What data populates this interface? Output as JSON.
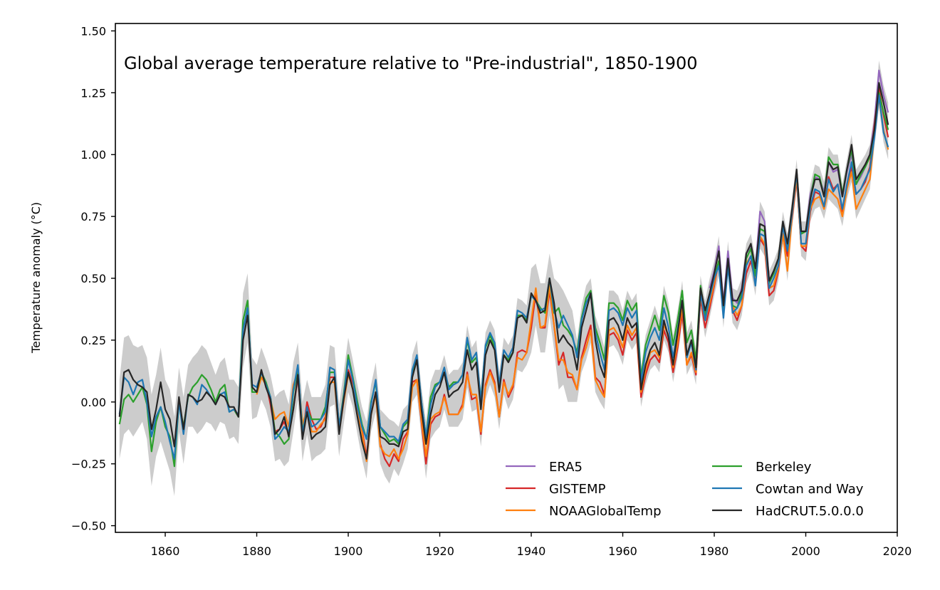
{
  "chart_data": {
    "type": "line",
    "title": "Global average temperature relative to \"Pre-industrial\", 1850-1900",
    "xlabel": "",
    "ylabel": "Temperature anomaly (°C)",
    "xlim": [
      1849.1,
      2020
    ],
    "ylim": [
      -0.527,
      1.53
    ],
    "x_ticks": [
      "1860",
      "1880",
      "1900",
      "1920",
      "1940",
      "1960",
      "1980",
      "2000",
      "2020"
    ],
    "y_ticks": [
      "1.50",
      "1.25",
      "1.00",
      "0.75",
      "0.50",
      "0.25",
      "0.00",
      "−0.25",
      "−0.50"
    ],
    "grid": false,
    "legend_placement": "lower-right",
    "shaded_band": {
      "color": "#cccccc",
      "decades": [
        1850,
        1860,
        1870,
        1880,
        1890,
        1900,
        1910,
        1920,
        1930,
        1940,
        1950,
        1960,
        1970,
        1980,
        1990,
        2000,
        2010
      ],
      "halfwidth": [
        0.14,
        0.12,
        0.11,
        0.09,
        0.09,
        0.07,
        0.06,
        0.05,
        0.05,
        0.1,
        0.05,
        0.04,
        0.04,
        0.04,
        0.04,
        0.04,
        0.04
      ]
    },
    "series": [
      {
        "name": "ERA5",
        "color": "#9467bd",
        "start_year": 1979,
        "values": [
          0.46,
          0.53,
          0.63,
          0.4,
          0.61,
          0.42,
          0.4,
          0.46,
          0.6,
          0.63,
          0.54,
          0.77,
          0.73,
          0.49,
          0.52,
          0.57,
          0.72,
          0.63,
          0.76,
          0.93,
          0.68,
          0.69,
          0.84,
          0.91,
          0.9,
          0.85,
          0.97,
          0.93,
          0.94,
          0.83,
          0.93,
          1.0,
          0.88,
          0.91,
          0.95,
          1.0,
          1.13,
          1.34,
          1.24,
          1.17
        ]
      },
      {
        "name": "GISTEMP",
        "color": "#d62728",
        "start_year": 1880,
        "values": [
          0.04,
          0.1,
          0.08,
          -0.01,
          -0.12,
          -0.11,
          -0.08,
          -0.13,
          -0.03,
          0.1,
          -0.13,
          0.0,
          -0.07,
          -0.11,
          -0.1,
          -0.06,
          0.1,
          0.1,
          -0.1,
          0.02,
          0.13,
          0.07,
          -0.03,
          -0.11,
          -0.22,
          -0.05,
          0.04,
          -0.17,
          -0.23,
          -0.26,
          -0.21,
          -0.24,
          -0.15,
          -0.12,
          0.08,
          0.09,
          -0.08,
          -0.25,
          -0.09,
          -0.06,
          -0.05,
          0.03,
          -0.05,
          -0.05,
          -0.05,
          -0.01,
          0.12,
          0.01,
          0.02,
          -0.13,
          0.07,
          0.13,
          0.08,
          -0.06,
          0.09,
          0.02,
          0.06,
          0.2,
          0.21,
          0.2,
          0.3,
          0.44,
          0.3,
          0.3,
          0.45,
          0.31,
          0.15,
          0.2,
          0.1,
          0.1,
          0.05,
          0.18,
          0.25,
          0.31,
          0.1,
          0.08,
          0.03,
          0.27,
          0.28,
          0.25,
          0.19,
          0.29,
          0.25,
          0.28,
          0.02,
          0.11,
          0.17,
          0.19,
          0.16,
          0.29,
          0.24,
          0.12,
          0.22,
          0.36,
          0.15,
          0.19,
          0.11,
          0.42,
          0.3,
          0.38,
          0.47,
          0.57,
          0.38,
          0.57,
          0.37,
          0.33,
          0.39,
          0.52,
          0.57,
          0.49,
          0.66,
          0.63,
          0.43,
          0.45,
          0.53,
          0.68,
          0.59,
          0.74,
          0.9,
          0.63,
          0.61,
          0.77,
          0.85,
          0.84,
          0.79,
          0.91,
          0.86,
          0.88,
          0.77,
          0.87,
          0.95,
          0.84,
          0.86,
          0.89,
          0.95,
          1.12,
          1.27,
          1.16,
          1.07
        ]
      },
      {
        "name": "NOAAGlobalTemp",
        "color": "#ff7f0e",
        "start_year": 1880,
        "values": [
          0.03,
          0.1,
          0.07,
          0.01,
          -0.07,
          -0.05,
          -0.04,
          -0.1,
          0.07,
          0.12,
          -0.09,
          -0.03,
          -0.12,
          -0.12,
          -0.09,
          -0.07,
          0.08,
          0.08,
          -0.12,
          0.0,
          0.11,
          0.06,
          -0.04,
          -0.12,
          -0.24,
          -0.05,
          0.03,
          -0.18,
          -0.21,
          -0.22,
          -0.19,
          -0.23,
          -0.19,
          -0.13,
          0.06,
          0.09,
          -0.07,
          -0.22,
          -0.07,
          -0.05,
          -0.04,
          0.02,
          -0.05,
          -0.05,
          -0.05,
          -0.02,
          0.11,
          0.03,
          0.03,
          -0.12,
          0.06,
          0.12,
          0.07,
          -0.06,
          0.08,
          0.03,
          0.07,
          0.18,
          0.17,
          0.2,
          0.33,
          0.46,
          0.3,
          0.31,
          0.47,
          0.31,
          0.17,
          0.17,
          0.12,
          0.11,
          0.05,
          0.17,
          0.22,
          0.29,
          0.09,
          0.05,
          0.02,
          0.29,
          0.3,
          0.27,
          0.22,
          0.31,
          0.27,
          0.3,
          0.04,
          0.13,
          0.2,
          0.21,
          0.18,
          0.31,
          0.27,
          0.14,
          0.24,
          0.39,
          0.15,
          0.2,
          0.12,
          0.43,
          0.33,
          0.4,
          0.48,
          0.57,
          0.39,
          0.56,
          0.39,
          0.35,
          0.39,
          0.56,
          0.59,
          0.5,
          0.67,
          0.64,
          0.46,
          0.47,
          0.54,
          0.68,
          0.53,
          0.75,
          0.91,
          0.63,
          0.63,
          0.78,
          0.82,
          0.83,
          0.78,
          0.86,
          0.84,
          0.82,
          0.75,
          0.86,
          0.93,
          0.78,
          0.82,
          0.86,
          0.9,
          1.08,
          1.23,
          1.1,
          1.02
        ]
      },
      {
        "name": "Berkeley",
        "color": "#2ca02c",
        "start_year": 1850,
        "values": [
          -0.09,
          0.01,
          0.03,
          0.0,
          0.03,
          0.06,
          -0.01,
          -0.2,
          -0.08,
          -0.02,
          -0.1,
          -0.14,
          -0.26,
          0.0,
          -0.1,
          0.02,
          0.06,
          0.08,
          0.11,
          0.09,
          0.05,
          0.0,
          0.05,
          0.07,
          -0.04,
          -0.03,
          -0.06,
          0.33,
          0.41,
          0.04,
          0.04,
          0.12,
          0.08,
          0.02,
          -0.12,
          -0.14,
          -0.17,
          -0.15,
          0.04,
          0.14,
          -0.12,
          -0.03,
          -0.07,
          -0.07,
          -0.07,
          -0.02,
          0.12,
          0.12,
          -0.1,
          0.03,
          0.19,
          0.1,
          0.0,
          -0.09,
          -0.15,
          0.0,
          0.08,
          -0.1,
          -0.13,
          -0.16,
          -0.15,
          -0.17,
          -0.1,
          -0.08,
          0.12,
          0.18,
          0.0,
          -0.14,
          0.02,
          0.07,
          0.08,
          0.12,
          0.06,
          0.08,
          0.08,
          0.11,
          0.25,
          0.16,
          0.18,
          0.01,
          0.22,
          0.27,
          0.22,
          0.06,
          0.19,
          0.17,
          0.2,
          0.35,
          0.35,
          0.33,
          0.43,
          0.41,
          0.38,
          0.36,
          0.5,
          0.36,
          0.38,
          0.31,
          0.29,
          0.26,
          0.2,
          0.34,
          0.42,
          0.45,
          0.3,
          0.24,
          0.17,
          0.4,
          0.4,
          0.38,
          0.33,
          0.41,
          0.37,
          0.4,
          0.1,
          0.23,
          0.29,
          0.35,
          0.29,
          0.43,
          0.36,
          0.23,
          0.33,
          0.45,
          0.24,
          0.29,
          0.17,
          0.47,
          0.35,
          0.43,
          0.5,
          0.57,
          0.38,
          0.56,
          0.39,
          0.38,
          0.44,
          0.58,
          0.62,
          0.51,
          0.7,
          0.69,
          0.48,
          0.52,
          0.58,
          0.72,
          0.63,
          0.77,
          0.93,
          0.68,
          0.69,
          0.82,
          0.92,
          0.91,
          0.83,
          0.99,
          0.96,
          0.96,
          0.84,
          0.94,
          1.02,
          0.88,
          0.92,
          0.95,
          0.99,
          1.1,
          1.25,
          1.17,
          1.1
        ]
      },
      {
        "name": "Cowtan and Way",
        "color": "#1f77b4",
        "start_year": 1850,
        "values": [
          -0.05,
          0.1,
          0.08,
          0.03,
          0.08,
          0.09,
          0.0,
          -0.14,
          -0.06,
          -0.02,
          -0.08,
          -0.16,
          -0.23,
          0.0,
          -0.13,
          0.03,
          0.02,
          -0.01,
          0.07,
          0.05,
          0.02,
          -0.01,
          0.03,
          0.04,
          -0.04,
          -0.03,
          -0.05,
          0.29,
          0.38,
          0.07,
          0.06,
          0.12,
          0.07,
          0.02,
          -0.15,
          -0.13,
          -0.1,
          -0.12,
          0.05,
          0.15,
          -0.13,
          -0.02,
          -0.1,
          -0.09,
          -0.07,
          -0.04,
          0.14,
          0.13,
          -0.1,
          0.02,
          0.17,
          0.09,
          -0.02,
          -0.1,
          -0.15,
          -0.01,
          0.09,
          -0.1,
          -0.12,
          -0.14,
          -0.14,
          -0.16,
          -0.09,
          -0.07,
          0.13,
          0.19,
          0.0,
          -0.14,
          -0.01,
          0.06,
          0.08,
          0.14,
          0.05,
          0.07,
          0.08,
          0.11,
          0.26,
          0.17,
          0.2,
          0.0,
          0.23,
          0.28,
          0.24,
          0.07,
          0.21,
          0.18,
          0.22,
          0.37,
          0.36,
          0.34,
          0.43,
          0.41,
          0.37,
          0.38,
          0.5,
          0.37,
          0.3,
          0.35,
          0.31,
          0.27,
          0.18,
          0.33,
          0.4,
          0.44,
          0.28,
          0.2,
          0.13,
          0.37,
          0.38,
          0.36,
          0.31,
          0.38,
          0.34,
          0.37,
          0.08,
          0.2,
          0.26,
          0.3,
          0.25,
          0.38,
          0.3,
          0.18,
          0.29,
          0.41,
          0.18,
          0.24,
          0.13,
          0.44,
          0.33,
          0.42,
          0.5,
          0.55,
          0.34,
          0.55,
          0.36,
          0.38,
          0.42,
          0.55,
          0.59,
          0.47,
          0.68,
          0.67,
          0.46,
          0.5,
          0.55,
          0.71,
          0.61,
          0.76,
          0.93,
          0.64,
          0.64,
          0.79,
          0.86,
          0.85,
          0.79,
          0.9,
          0.85,
          0.88,
          0.78,
          0.88,
          0.97,
          0.84,
          0.86,
          0.9,
          0.94,
          1.07,
          1.24,
          1.09,
          1.03
        ]
      },
      {
        "name": "HadCRUT.5.0.0.0",
        "color": "#262626",
        "start_year": 1850,
        "values": [
          -0.06,
          0.12,
          0.13,
          0.09,
          0.07,
          0.06,
          0.04,
          -0.11,
          -0.03,
          0.08,
          -0.03,
          -0.07,
          -0.18,
          0.02,
          -0.11,
          0.03,
          0.02,
          0.0,
          0.01,
          0.04,
          0.02,
          -0.01,
          0.03,
          0.02,
          -0.02,
          -0.02,
          -0.06,
          0.25,
          0.35,
          0.06,
          0.04,
          0.13,
          0.06,
          0.01,
          -0.13,
          -0.11,
          -0.06,
          -0.14,
          -0.03,
          0.11,
          -0.15,
          -0.04,
          -0.15,
          -0.13,
          -0.12,
          -0.1,
          0.07,
          0.1,
          -0.13,
          0.01,
          0.12,
          0.05,
          -0.06,
          -0.16,
          -0.23,
          -0.05,
          0.04,
          -0.14,
          -0.15,
          -0.17,
          -0.17,
          -0.18,
          -0.12,
          -0.11,
          0.1,
          0.17,
          -0.03,
          -0.17,
          -0.05,
          0.03,
          0.06,
          0.12,
          0.02,
          0.04,
          0.05,
          0.08,
          0.21,
          0.13,
          0.16,
          -0.03,
          0.19,
          0.25,
          0.21,
          0.04,
          0.19,
          0.16,
          0.2,
          0.34,
          0.35,
          0.32,
          0.44,
          0.41,
          0.36,
          0.37,
          0.5,
          0.4,
          0.24,
          0.27,
          0.24,
          0.22,
          0.13,
          0.3,
          0.37,
          0.44,
          0.25,
          0.15,
          0.1,
          0.33,
          0.34,
          0.31,
          0.25,
          0.34,
          0.3,
          0.32,
          0.05,
          0.15,
          0.21,
          0.24,
          0.19,
          0.33,
          0.26,
          0.15,
          0.28,
          0.41,
          0.19,
          0.25,
          0.14,
          0.46,
          0.37,
          0.44,
          0.52,
          0.61,
          0.39,
          0.58,
          0.41,
          0.41,
          0.45,
          0.6,
          0.64,
          0.54,
          0.72,
          0.71,
          0.49,
          0.53,
          0.58,
          0.73,
          0.64,
          0.78,
          0.94,
          0.69,
          0.69,
          0.82,
          0.9,
          0.9,
          0.83,
          0.97,
          0.94,
          0.95,
          0.83,
          0.94,
          1.04,
          0.9,
          0.93,
          0.96,
          1.0,
          1.1,
          1.29,
          1.21,
          1.12
        ]
      }
    ]
  }
}
